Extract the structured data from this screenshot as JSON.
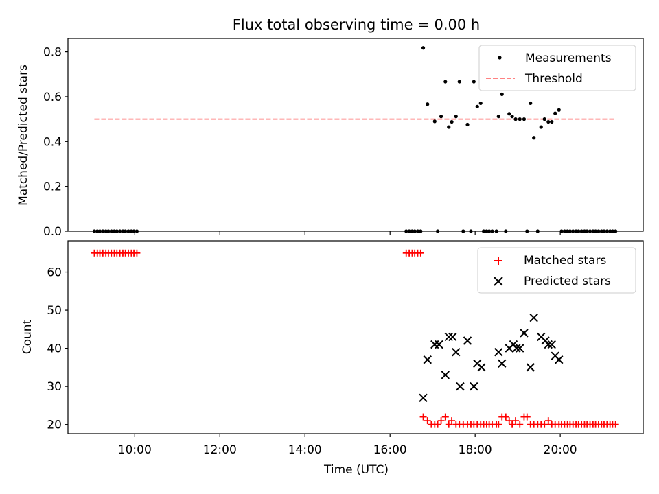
{
  "chart_data": [
    {
      "type": "scatter",
      "title": "Flux total observing time = 0.00 h",
      "xlabel": "",
      "ylabel": "Matched/Predicted stars",
      "xlim": [
        8.43,
        21.95
      ],
      "ylim": [
        0,
        0.86
      ],
      "yticks": [
        0.0,
        0.2,
        0.4,
        0.6,
        0.8
      ],
      "ytick_labels": [
        "0.0",
        "0.2",
        "0.4",
        "0.6",
        "0.8"
      ],
      "grid": false,
      "legend": "top-right",
      "series": [
        {
          "name": "Measurements",
          "color": "#000000",
          "marker": "dot",
          "points": [
            [
              9.05,
              0
            ],
            [
              9.12,
              0
            ],
            [
              9.18,
              0
            ],
            [
              9.25,
              0
            ],
            [
              9.32,
              0
            ],
            [
              9.38,
              0
            ],
            [
              9.45,
              0
            ],
            [
              9.52,
              0
            ],
            [
              9.58,
              0
            ],
            [
              9.65,
              0
            ],
            [
              9.72,
              0
            ],
            [
              9.78,
              0
            ],
            [
              9.85,
              0
            ],
            [
              9.92,
              0
            ],
            [
              9.98,
              0
            ],
            [
              10.05,
              0
            ],
            [
              16.38,
              0
            ],
            [
              16.45,
              0
            ],
            [
              16.52,
              0
            ],
            [
              16.58,
              0
            ],
            [
              16.65,
              0
            ],
            [
              16.72,
              0
            ],
            [
              16.78,
              0.818
            ],
            [
              16.88,
              0.567
            ],
            [
              17.05,
              0.49
            ],
            [
              17.12,
              0
            ],
            [
              17.2,
              0.512
            ],
            [
              17.3,
              0.667
            ],
            [
              17.38,
              0.465
            ],
            [
              17.45,
              0.488
            ],
            [
              17.55,
              0.512
            ],
            [
              17.63,
              0.667
            ],
            [
              17.72,
              0
            ],
            [
              17.82,
              0.476
            ],
            [
              17.9,
              0
            ],
            [
              17.97,
              0.667
            ],
            [
              18.05,
              0.556
            ],
            [
              18.13,
              0.571
            ],
            [
              18.2,
              0
            ],
            [
              18.27,
              0
            ],
            [
              18.33,
              0
            ],
            [
              18.4,
              0
            ],
            [
              18.5,
              0
            ],
            [
              18.55,
              0.512
            ],
            [
              18.63,
              0.611
            ],
            [
              18.72,
              0
            ],
            [
              18.8,
              0.524
            ],
            [
              18.87,
              0.512
            ],
            [
              18.95,
              0.5
            ],
            [
              19.05,
              0.5
            ],
            [
              19.15,
              0.5
            ],
            [
              19.22,
              0
            ],
            [
              19.3,
              0.571
            ],
            [
              19.38,
              0.417
            ],
            [
              19.47,
              0
            ],
            [
              19.55,
              0.465
            ],
            [
              19.63,
              0.5
            ],
            [
              19.72,
              0.488
            ],
            [
              19.8,
              0.488
            ],
            [
              19.88,
              0.526
            ],
            [
              19.97,
              0.541
            ],
            [
              20.03,
              0
            ],
            [
              20.1,
              0
            ],
            [
              20.17,
              0
            ],
            [
              20.23,
              0
            ],
            [
              20.3,
              0
            ],
            [
              20.37,
              0
            ],
            [
              20.43,
              0
            ],
            [
              20.5,
              0
            ],
            [
              20.57,
              0
            ],
            [
              20.63,
              0
            ],
            [
              20.7,
              0
            ],
            [
              20.77,
              0
            ],
            [
              20.83,
              0
            ],
            [
              20.9,
              0
            ],
            [
              20.97,
              0
            ],
            [
              21.03,
              0
            ],
            [
              21.1,
              0
            ],
            [
              21.17,
              0
            ],
            [
              21.23,
              0
            ],
            [
              21.3,
              0
            ]
          ]
        },
        {
          "name": "Threshold",
          "color": "#ff7070",
          "style": "dashed",
          "points": [
            [
              9.05,
              0.5
            ],
            [
              21.3,
              0.5
            ]
          ]
        }
      ]
    },
    {
      "type": "scatter",
      "xlabel": "Time (UTC)",
      "ylabel": "Count",
      "xlim": [
        8.43,
        21.95
      ],
      "ylim": [
        17.6,
        68.2
      ],
      "xticks": [
        10,
        12,
        14,
        16,
        18,
        20
      ],
      "xtick_labels": [
        "10:00",
        "12:00",
        "14:00",
        "16:00",
        "18:00",
        "20:00"
      ],
      "yticks": [
        20,
        30,
        40,
        50,
        60
      ],
      "ytick_labels": [
        "20",
        "30",
        "40",
        "50",
        "60"
      ],
      "grid": false,
      "legend": "top-right",
      "series": [
        {
          "name": "Matched stars",
          "color": "#ff0000",
          "marker": "plus",
          "points": [
            [
              9.05,
              65
            ],
            [
              9.12,
              65
            ],
            [
              9.18,
              65
            ],
            [
              9.25,
              65
            ],
            [
              9.32,
              65
            ],
            [
              9.38,
              65
            ],
            [
              9.45,
              65
            ],
            [
              9.52,
              65
            ],
            [
              9.58,
              65
            ],
            [
              9.65,
              65
            ],
            [
              9.72,
              65
            ],
            [
              9.78,
              65
            ],
            [
              9.85,
              65
            ],
            [
              9.92,
              65
            ],
            [
              9.98,
              65
            ],
            [
              10.05,
              65
            ],
            [
              16.38,
              65
            ],
            [
              16.45,
              65
            ],
            [
              16.52,
              65
            ],
            [
              16.58,
              65
            ],
            [
              16.65,
              65
            ],
            [
              16.72,
              65
            ],
            [
              16.78,
              22
            ],
            [
              16.88,
              21
            ],
            [
              16.97,
              20
            ],
            [
              17.05,
              20
            ],
            [
              17.12,
              20
            ],
            [
              17.2,
              21
            ],
            [
              17.3,
              22
            ],
            [
              17.38,
              20
            ],
            [
              17.45,
              21
            ],
            [
              17.55,
              20
            ],
            [
              17.63,
              20
            ],
            [
              17.72,
              20
            ],
            [
              17.82,
              20
            ],
            [
              17.9,
              20
            ],
            [
              17.97,
              20
            ],
            [
              18.05,
              20
            ],
            [
              18.13,
              20
            ],
            [
              18.2,
              20
            ],
            [
              18.27,
              20
            ],
            [
              18.33,
              20
            ],
            [
              18.4,
              20
            ],
            [
              18.5,
              20
            ],
            [
              18.55,
              20
            ],
            [
              18.63,
              22
            ],
            [
              18.72,
              22
            ],
            [
              18.8,
              21
            ],
            [
              18.87,
              20
            ],
            [
              18.95,
              21
            ],
            [
              19.05,
              20
            ],
            [
              19.15,
              22
            ],
            [
              19.22,
              22
            ],
            [
              19.3,
              20
            ],
            [
              19.38,
              20
            ],
            [
              19.47,
              20
            ],
            [
              19.55,
              20
            ],
            [
              19.63,
              20
            ],
            [
              19.72,
              21
            ],
            [
              19.8,
              20
            ],
            [
              19.88,
              20
            ],
            [
              19.97,
              20
            ],
            [
              20.03,
              20
            ],
            [
              20.1,
              20
            ],
            [
              20.17,
              20
            ],
            [
              20.23,
              20
            ],
            [
              20.3,
              20
            ],
            [
              20.37,
              20
            ],
            [
              20.43,
              20
            ],
            [
              20.5,
              20
            ],
            [
              20.57,
              20
            ],
            [
              20.63,
              20
            ],
            [
              20.7,
              20
            ],
            [
              20.77,
              20
            ],
            [
              20.83,
              20
            ],
            [
              20.9,
              20
            ],
            [
              20.97,
              20
            ],
            [
              21.03,
              20
            ],
            [
              21.1,
              20
            ],
            [
              21.17,
              20
            ],
            [
              21.23,
              20
            ],
            [
              21.3,
              20
            ]
          ]
        },
        {
          "name": "Predicted stars",
          "color": "#000000",
          "marker": "x",
          "points": [
            [
              16.78,
              27
            ],
            [
              16.88,
              37
            ],
            [
              17.05,
              41
            ],
            [
              17.15,
              41
            ],
            [
              17.3,
              33
            ],
            [
              17.38,
              43
            ],
            [
              17.47,
              43
            ],
            [
              17.55,
              39
            ],
            [
              17.65,
              30
            ],
            [
              17.82,
              42
            ],
            [
              17.97,
              30
            ],
            [
              18.05,
              36
            ],
            [
              18.15,
              35
            ],
            [
              18.55,
              39
            ],
            [
              18.63,
              36
            ],
            [
              18.8,
              40
            ],
            [
              18.9,
              41
            ],
            [
              18.97,
              40
            ],
            [
              19.05,
              40
            ],
            [
              19.15,
              44
            ],
            [
              19.3,
              35
            ],
            [
              19.38,
              48
            ],
            [
              19.55,
              43
            ],
            [
              19.65,
              42
            ],
            [
              19.72,
              41
            ],
            [
              19.8,
              41
            ],
            [
              19.88,
              38
            ],
            [
              19.97,
              37
            ]
          ]
        }
      ]
    }
  ]
}
